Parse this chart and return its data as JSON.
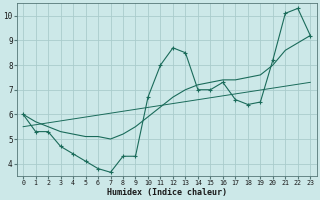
{
  "xlabel": "Humidex (Indice chaleur)",
  "xlim": [
    -0.5,
    23.5
  ],
  "ylim": [
    3.5,
    10.5
  ],
  "xticks": [
    0,
    1,
    2,
    3,
    4,
    5,
    6,
    7,
    8,
    9,
    10,
    11,
    12,
    13,
    14,
    15,
    16,
    17,
    18,
    19,
    20,
    21,
    22,
    23
  ],
  "yticks": [
    4,
    5,
    6,
    7,
    8,
    9,
    10
  ],
  "background_color": "#cce8e8",
  "grid_color": "#aacccc",
  "line_color": "#1a6b5a",
  "line1_x": [
    0,
    1,
    2,
    3,
    4,
    5,
    6,
    7,
    8,
    9,
    10,
    11,
    12,
    13,
    14,
    15,
    16,
    17,
    18,
    19,
    20,
    21,
    22,
    23
  ],
  "line1_y": [
    6.0,
    5.3,
    5.3,
    4.7,
    4.4,
    4.1,
    3.8,
    3.65,
    4.3,
    4.3,
    6.7,
    8.0,
    8.7,
    8.5,
    7.0,
    7.0,
    7.3,
    6.6,
    6.4,
    6.5,
    8.2,
    10.1,
    10.3,
    9.2
  ],
  "line2_x": [
    0,
    23
  ],
  "line2_y": [
    5.5,
    7.3
  ],
  "line3_x": [
    0,
    1,
    2,
    3,
    4,
    5,
    6,
    7,
    8,
    9,
    10,
    11,
    12,
    13,
    14,
    15,
    16,
    17,
    18,
    19,
    20,
    21,
    22,
    23
  ],
  "line3_y": [
    6.0,
    5.7,
    5.5,
    5.3,
    5.2,
    5.1,
    5.1,
    5.0,
    5.2,
    5.5,
    5.9,
    6.3,
    6.7,
    7.0,
    7.2,
    7.3,
    7.4,
    7.4,
    7.5,
    7.6,
    8.0,
    8.6,
    8.9,
    9.2
  ]
}
